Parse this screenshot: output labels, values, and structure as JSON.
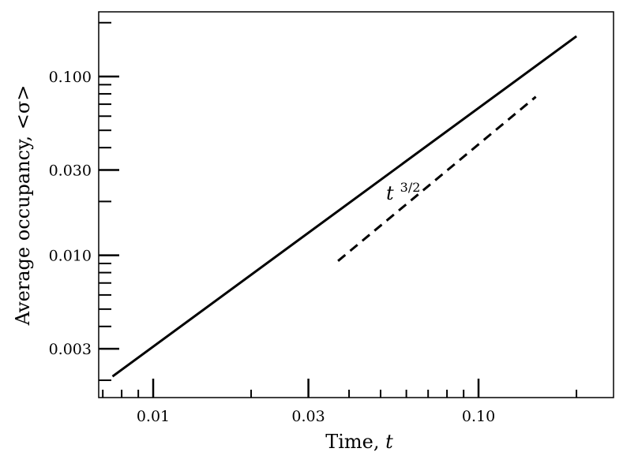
{
  "chart_data": {
    "type": "line",
    "xlabel": "Time, ",
    "xlabel_var": "t",
    "ylabel": "Average occupancy, <σ>",
    "x_scale": "log",
    "y_scale": "log",
    "xlim": [
      0.0068,
      0.26
    ],
    "ylim": [
      0.0016,
      0.23
    ],
    "x_ticks": [
      {
        "value": 0.01,
        "label": "0.01"
      },
      {
        "value": 0.03,
        "label": "0.03"
      },
      {
        "value": 0.1,
        "label": "0.10"
      }
    ],
    "y_ticks": [
      {
        "value": 0.003,
        "label": "0.003"
      },
      {
        "value": 0.01,
        "label": "0.010"
      },
      {
        "value": 0.03,
        "label": "0.030"
      },
      {
        "value": 0.1,
        "label": "0.100"
      }
    ],
    "x_minor_ticks": [
      0.007,
      0.008,
      0.009,
      0.02,
      0.04,
      0.05,
      0.06,
      0.07,
      0.08,
      0.09,
      0.2
    ],
    "y_minor_ticks": [
      0.002,
      0.004,
      0.005,
      0.006,
      0.007,
      0.008,
      0.009,
      0.02,
      0.04,
      0.05,
      0.06,
      0.07,
      0.08,
      0.09,
      0.2
    ],
    "series": [
      {
        "style": "solid",
        "color": "#000000",
        "x": [
          0.0075,
          0.2
        ],
        "y": [
          0.0021,
          0.168
        ]
      },
      {
        "style": "dashed",
        "color": "#000000",
        "x": [
          0.037,
          0.15
        ],
        "y": [
          0.0093,
          0.077
        ]
      }
    ],
    "annotations": [
      {
        "text": "t",
        "sup": "3/2",
        "x": 0.052,
        "y": 0.0205
      }
    ],
    "grid": false,
    "legend": "none"
  }
}
